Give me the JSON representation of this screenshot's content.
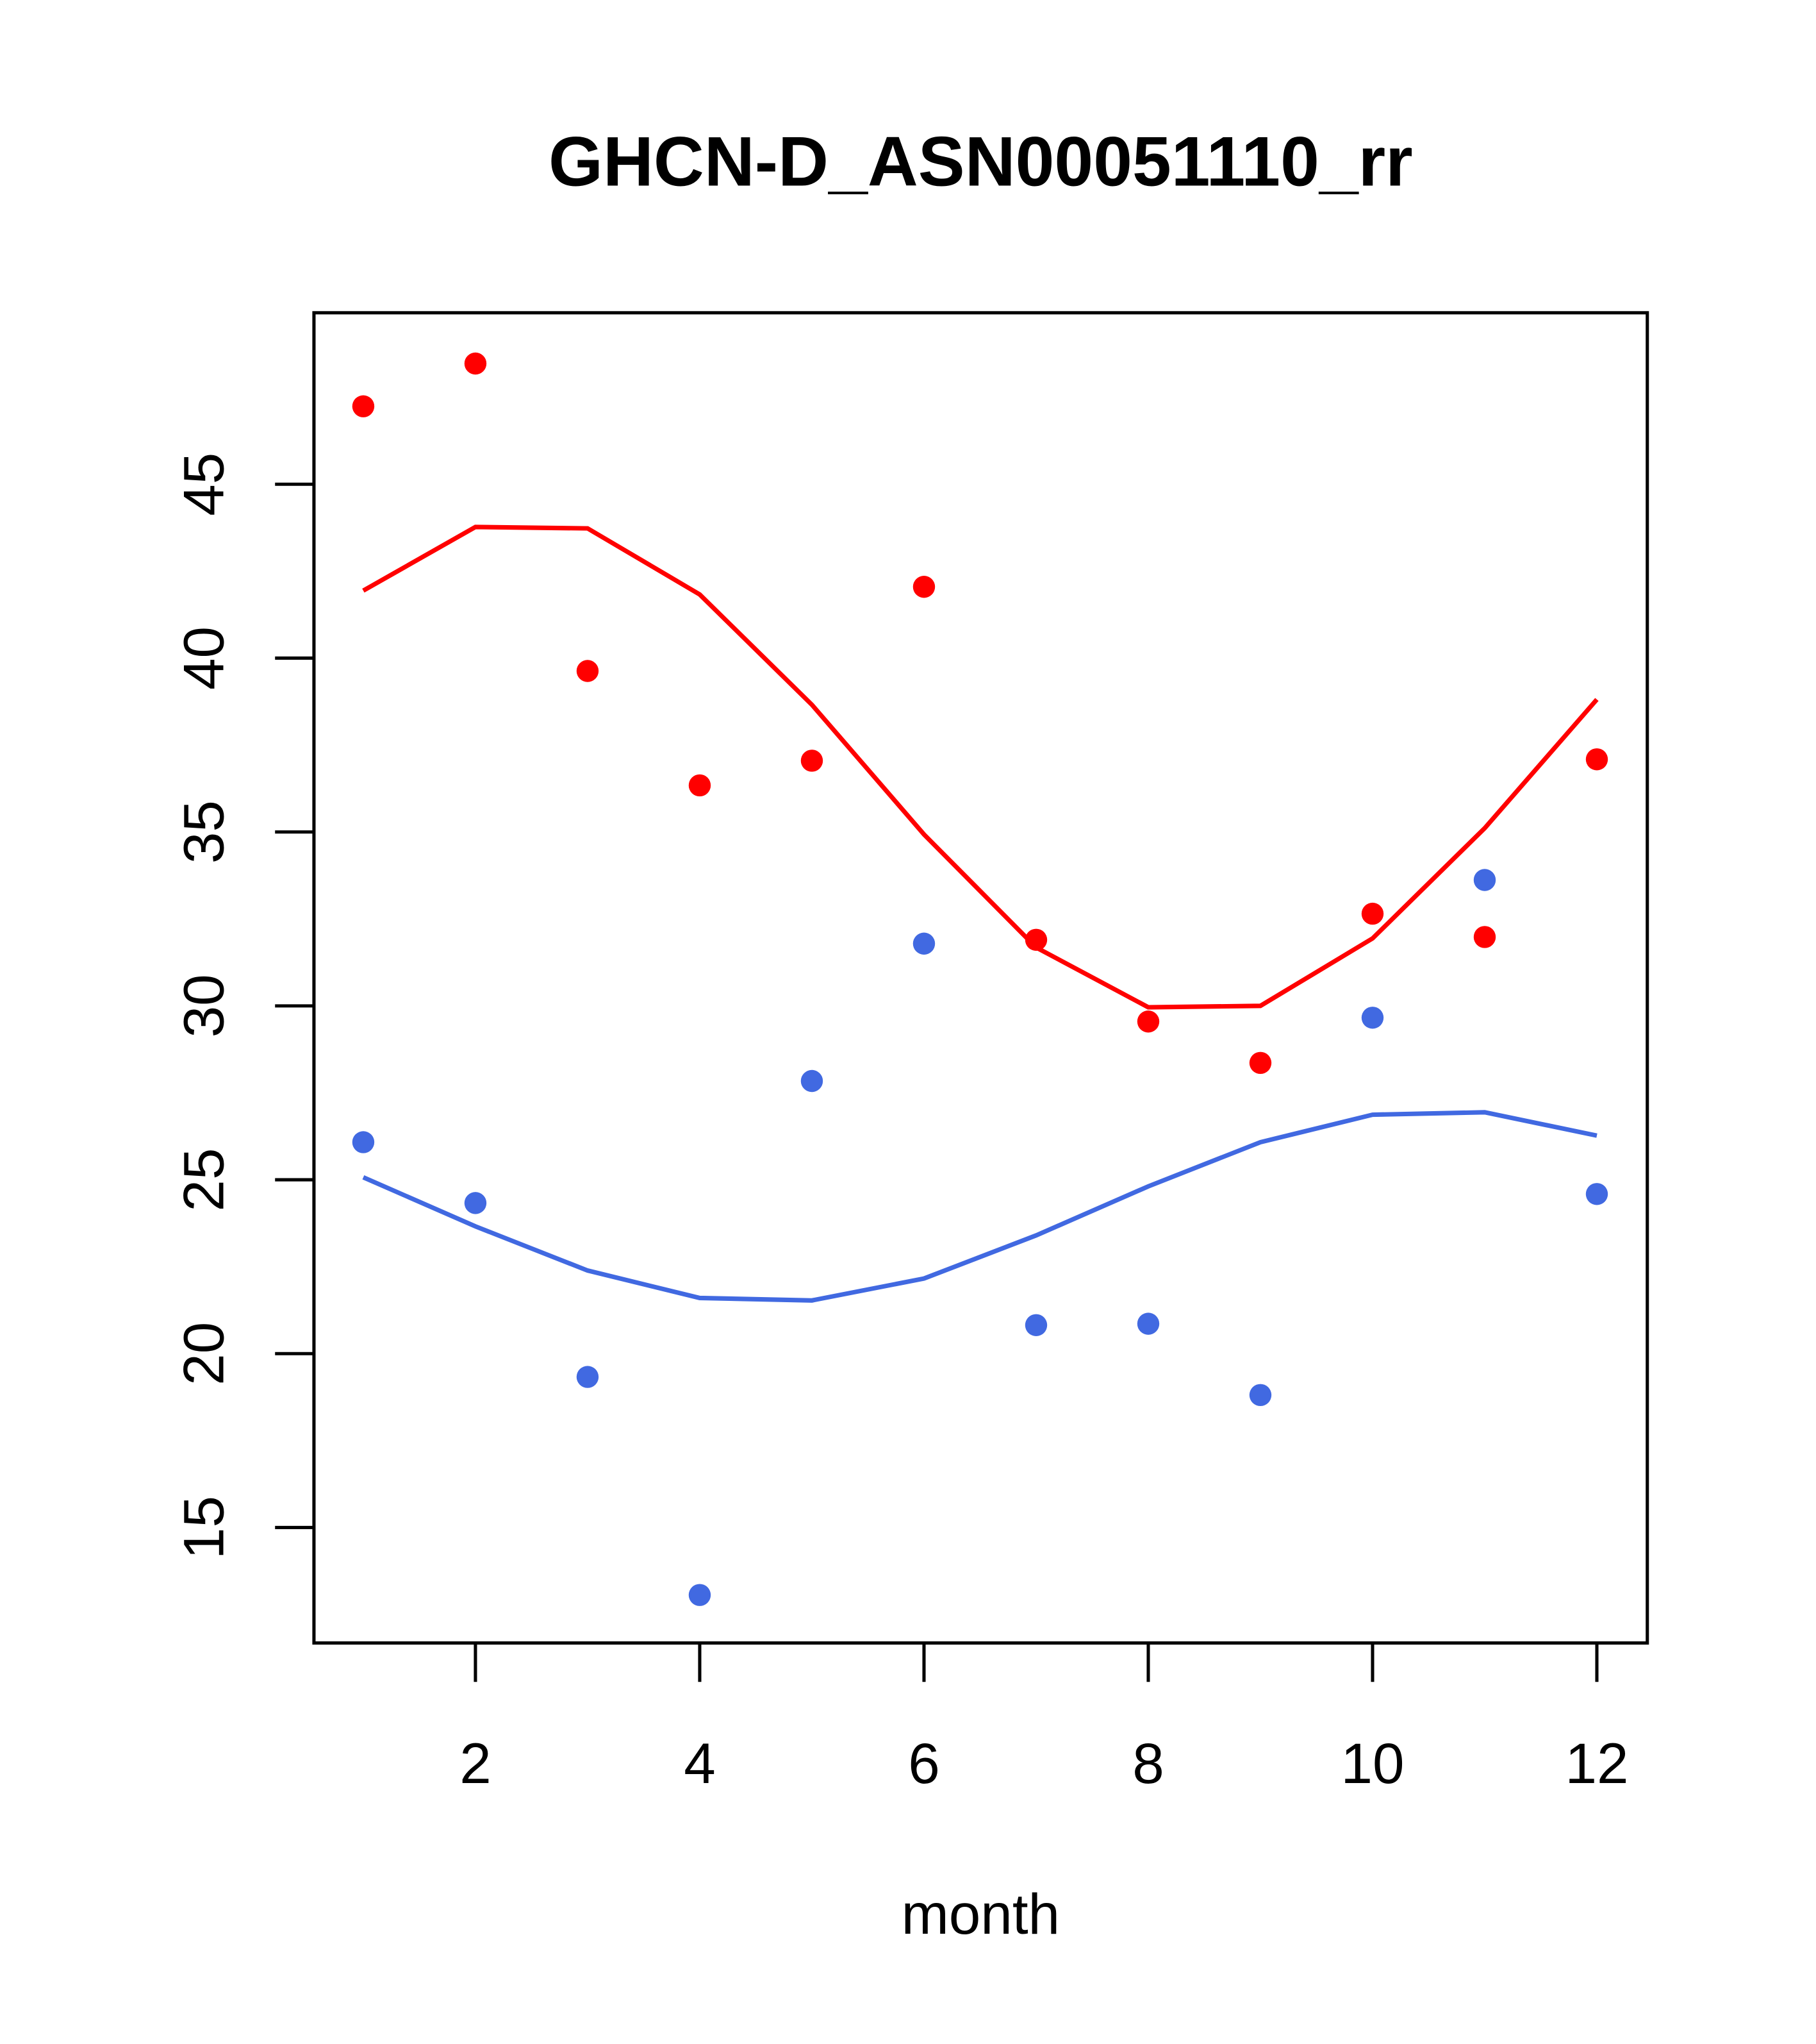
{
  "chart_data": {
    "type": "scatter",
    "title": "GHCN-D_ASN00051110_rr",
    "xlabel": "month",
    "ylabel": "",
    "xlim": [
      0.56,
      12.45
    ],
    "ylim": [
      11.68,
      49.93
    ],
    "xticks": [
      2,
      4,
      6,
      8,
      10,
      12
    ],
    "yticks": [
      15,
      20,
      25,
      30,
      35,
      40,
      45
    ],
    "x": [
      1,
      2,
      3,
      4,
      5,
      6,
      7,
      8,
      9,
      10,
      11,
      12
    ],
    "series": [
      {
        "name": "red points",
        "kind": "points",
        "color": "#ff0000",
        "values": [
          47.24,
          48.47,
          39.63,
          36.34,
          37.05,
          42.05,
          31.9,
          29.55,
          28.36,
          32.65,
          31.98,
          37.09
        ]
      },
      {
        "name": "red line",
        "kind": "line",
        "color": "#ff0000",
        "values": [
          41.94,
          43.77,
          43.73,
          41.83,
          38.66,
          34.93,
          31.68,
          29.96,
          30.0,
          31.94,
          35.11,
          38.81
        ]
      },
      {
        "name": "blue points",
        "kind": "points",
        "color": "#4169e1",
        "values": [
          26.08,
          24.33,
          19.33,
          13.06,
          27.84,
          31.79,
          20.82,
          20.86,
          18.81,
          29.66,
          33.62,
          24.59
        ]
      },
      {
        "name": "blue line",
        "kind": "line",
        "color": "#4169e1",
        "values": [
          25.07,
          23.66,
          22.39,
          21.6,
          21.53,
          22.16,
          23.4,
          24.81,
          26.08,
          26.87,
          26.94,
          26.27
        ]
      }
    ],
    "grid": false
  }
}
